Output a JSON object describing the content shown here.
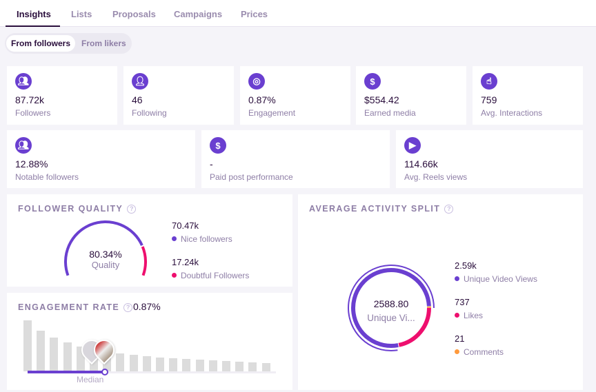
{
  "tabs": [
    {
      "label": "Insights",
      "active": true
    },
    {
      "label": "Lists"
    },
    {
      "label": "Proposals"
    },
    {
      "label": "Campaigns"
    },
    {
      "label": "Prices"
    }
  ],
  "audience_toggle": {
    "options": [
      "From followers",
      "From likers"
    ],
    "selected": "From followers"
  },
  "stats": [
    {
      "icon": "users-icon",
      "value": "87.72k",
      "label": "Followers"
    },
    {
      "icon": "user-following-icon",
      "value": "46",
      "label": "Following"
    },
    {
      "icon": "target-icon",
      "value": "0.87%",
      "label": "Engagement"
    },
    {
      "icon": "dollar-icon",
      "value": "$554.42",
      "label": "Earned media"
    },
    {
      "icon": "hand-pointer-icon",
      "value": "759",
      "label": "Avg. Interactions"
    },
    {
      "icon": "users-icon",
      "value": "12.88%",
      "label": "Notable followers"
    },
    {
      "icon": "dollar-icon",
      "value": "-",
      "label": "Paid post performance"
    },
    {
      "icon": "play-icon",
      "value": "114.66k",
      "label": "Avg. Reels views"
    }
  ],
  "follower_quality": {
    "title": "FOLLOWER QUALITY",
    "percent": 80.34,
    "center_value": "80.34%",
    "center_label": "Quality",
    "legend": [
      {
        "value": "70.47k",
        "label": "Nice followers",
        "color": "#6a3fd0"
      },
      {
        "value": "17.24k",
        "label": "Doubtful Followers",
        "color": "#ee0f6e"
      }
    ]
  },
  "engagement_rate": {
    "title": "ENGAGEMENT RATE",
    "value": "0.87%",
    "median_label": "Median",
    "distribution": [
      74,
      59,
      49,
      42,
      36,
      32,
      28,
      26,
      24,
      22,
      20,
      19,
      18,
      17,
      16,
      15,
      14,
      13,
      12
    ],
    "median_index": 7
  },
  "activity_split": {
    "title": "AVERAGE ACTIVITY SPLIT",
    "center_value": "2588.80",
    "center_label": "Unique Vi...",
    "legend": [
      {
        "value": "2.59k",
        "label": "Unique Video Views",
        "color": "#6a3fd0",
        "amount": 2588.8
      },
      {
        "value": "737",
        "label": "Likes",
        "color": "#ee0f6e",
        "amount": 737
      },
      {
        "value": "21",
        "label": "Comments",
        "color": "#ff9a3c",
        "amount": 21
      }
    ]
  }
}
